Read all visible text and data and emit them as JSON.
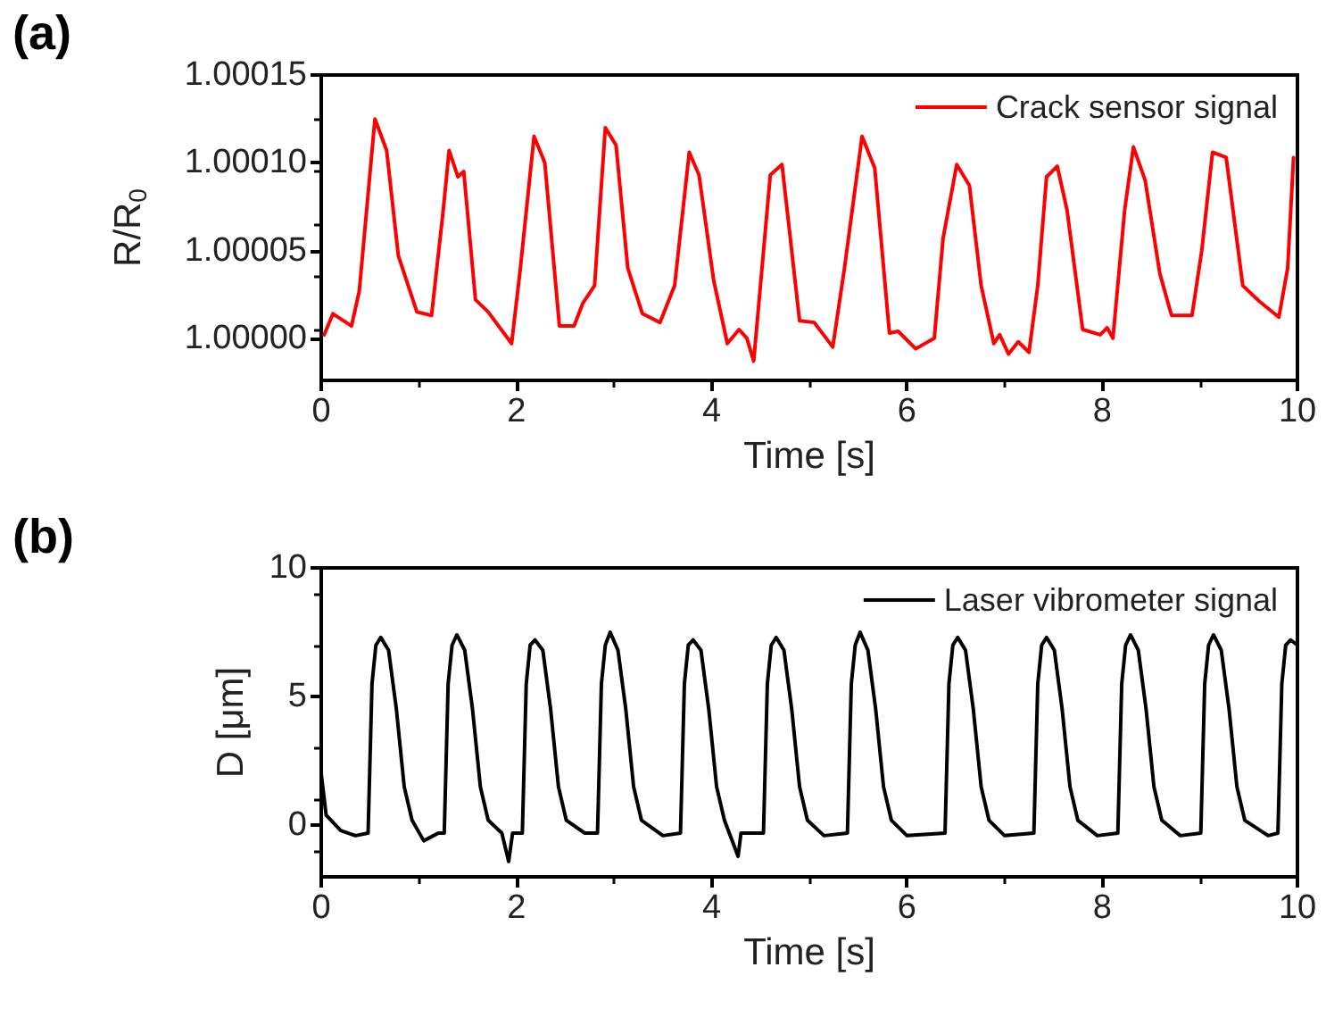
{
  "chart_data": [
    {
      "type": "line",
      "title": "(a)",
      "xlabel": "Time [s]",
      "ylabel": "R/R$_{0}$",
      "xlim": [
        0,
        10
      ],
      "xticks": [
        0,
        2,
        4,
        6,
        8,
        10
      ],
      "ylim": [
        0.999976,
        1.00015
      ],
      "yticks": [
        {
          "value": 1,
          "label": "1.00000"
        },
        {
          "value": 1.00005,
          "label": "1.00005"
        },
        {
          "value": 1.0001,
          "label": "1.00010"
        },
        {
          "value": 1.00015,
          "label": "1.00015"
        }
      ],
      "legend": "top right",
      "marker": "none",
      "line_style": "solid",
      "grid": false,
      "series": [
        {
          "name": "Crack sensor signal",
          "color": "#ff0000",
          "x": [
            0.03,
            0.12,
            0.31,
            0.39,
            0.55,
            0.67,
            0.79,
            0.98,
            1.13,
            1.25,
            1.31,
            1.4,
            1.46,
            1.58,
            1.71,
            1.95,
            2.04,
            2.18,
            2.29,
            2.44,
            2.59,
            2.68,
            2.8,
            2.91,
            3.02,
            3.14,
            3.29,
            3.47,
            3.62,
            3.77,
            3.87,
            4.02,
            4.16,
            4.28,
            4.36,
            4.43,
            4.6,
            4.72,
            4.9,
            5.05,
            5.24,
            5.36,
            5.54,
            5.67,
            5.82,
            5.91,
            6.09,
            6.28,
            6.37,
            6.51,
            6.64,
            6.76,
            6.89,
            6.95,
            7.04,
            7.14,
            7.25,
            7.34,
            7.43,
            7.54,
            7.64,
            7.8,
            7.98,
            8.05,
            8.11,
            8.23,
            8.32,
            8.44,
            8.59,
            8.71,
            8.92,
            9.02,
            9.13,
            9.27,
            9.44,
            9.61,
            9.81,
            9.9,
            9.96
          ],
          "values": [
            1.000002,
            1.000014,
            1.000007,
            1.000027,
            1.000125,
            1.000107,
            1.000047,
            1.000015,
            1.000013,
            1.000073,
            1.000107,
            1.000092,
            1.000095,
            1.000022,
            1.000015,
            0.999997,
            1.00004,
            1.000115,
            1.0001,
            1.000007,
            1.000007,
            1.00002,
            1.00003,
            1.00012,
            1.00011,
            1.00004,
            1.000014,
            1.000009,
            1.00003,
            1.000106,
            1.000093,
            1.000033,
            0.999997,
            1.000005,
            1.0,
            0.999987,
            1.000093,
            1.000099,
            1.00001,
            1.000009,
            0.999995,
            1.00004,
            1.000115,
            1.000097,
            1.000003,
            1.000004,
            0.999994,
            1.0,
            1.000057,
            1.000099,
            1.000087,
            1.00003,
            0.999997,
            1.000002,
            0.999991,
            0.999998,
            0.999992,
            1.00003,
            1.000092,
            1.000098,
            1.000073,
            1.000005,
            1.000002,
            1.000006,
            1.0,
            1.000073,
            1.000109,
            1.00009,
            1.000037,
            1.000013,
            1.000013,
            1.00005,
            1.000106,
            1.000103,
            1.00003,
            1.000021,
            1.000012,
            1.00004,
            1.000103
          ]
        }
      ]
    },
    {
      "type": "line",
      "title": "(b)",
      "xlabel": "Time [s]",
      "ylabel": "D [μm]",
      "xlim": [
        0,
        10
      ],
      "xticks": [
        0,
        2,
        4,
        6,
        8,
        10
      ],
      "ylim": [
        -2,
        10
      ],
      "yticks": [
        0,
        5,
        10
      ],
      "legend": "top right",
      "marker": "none",
      "line_style": "solid",
      "grid": false,
      "series": [
        {
          "name": "Laser vibrometer signal",
          "color": "#000000",
          "x": [
            0,
            0.05,
            0.2,
            0.35,
            0.48,
            0.52,
            0.56,
            0.61,
            0.69,
            0.77,
            0.85,
            0.93,
            1.05,
            1.2,
            1.26,
            1.3,
            1.34,
            1.39,
            1.47,
            1.55,
            1.63,
            1.71,
            1.85,
            1.92,
            1.96,
            2.06,
            2.1,
            2.14,
            2.19,
            2.27,
            2.35,
            2.43,
            2.51,
            2.7,
            2.83,
            2.87,
            2.91,
            2.96,
            3.04,
            3.12,
            3.2,
            3.28,
            3.5,
            3.68,
            3.72,
            3.76,
            3.81,
            3.89,
            3.97,
            4.05,
            4.13,
            4.27,
            4.3,
            4.53,
            4.57,
            4.61,
            4.66,
            4.74,
            4.82,
            4.9,
            4.98,
            5.15,
            5.39,
            5.43,
            5.47,
            5.52,
            5.6,
            5.68,
            5.76,
            5.84,
            6.0,
            6.39,
            6.43,
            6.47,
            6.52,
            6.6,
            6.68,
            6.76,
            6.84,
            7.0,
            7.3,
            7.34,
            7.38,
            7.43,
            7.51,
            7.59,
            7.67,
            7.75,
            7.95,
            8.16,
            8.2,
            8.24,
            8.29,
            8.37,
            8.45,
            8.53,
            8.61,
            8.8,
            9.01,
            9.05,
            9.09,
            9.14,
            9.22,
            9.3,
            9.38,
            9.46,
            9.7,
            9.8,
            9.84,
            9.88,
            9.93,
            10.0
          ],
          "values": [
            2.0,
            0.4,
            -0.2,
            -0.4,
            -0.3,
            5.5,
            7.0,
            7.3,
            6.8,
            4.5,
            1.5,
            0.2,
            -0.6,
            -0.3,
            -0.3,
            5.5,
            7.0,
            7.4,
            6.8,
            4.5,
            1.5,
            0.2,
            -0.3,
            -1.4,
            -0.3,
            -0.3,
            5.5,
            7.0,
            7.2,
            6.8,
            4.5,
            1.5,
            0.2,
            -0.3,
            -0.3,
            5.5,
            7.0,
            7.5,
            6.8,
            4.5,
            1.5,
            0.2,
            -0.4,
            -0.3,
            5.5,
            7.0,
            7.2,
            6.8,
            4.5,
            1.5,
            0.2,
            -1.2,
            -0.3,
            -0.3,
            5.5,
            7.0,
            7.3,
            6.8,
            4.5,
            1.5,
            0.2,
            -0.4,
            -0.3,
            5.5,
            7.0,
            7.5,
            6.8,
            4.5,
            1.5,
            0.2,
            -0.4,
            -0.3,
            5.5,
            7.0,
            7.3,
            6.8,
            4.5,
            1.5,
            0.2,
            -0.4,
            -0.3,
            5.5,
            7.0,
            7.3,
            6.8,
            4.5,
            1.5,
            0.2,
            -0.4,
            -0.3,
            5.5,
            7.0,
            7.4,
            6.8,
            4.5,
            1.5,
            0.2,
            -0.4,
            -0.3,
            5.5,
            7.0,
            7.4,
            6.8,
            4.5,
            1.5,
            0.2,
            -0.4,
            -0.3,
            5.5,
            7.0,
            7.2,
            7.0
          ]
        }
      ]
    }
  ]
}
